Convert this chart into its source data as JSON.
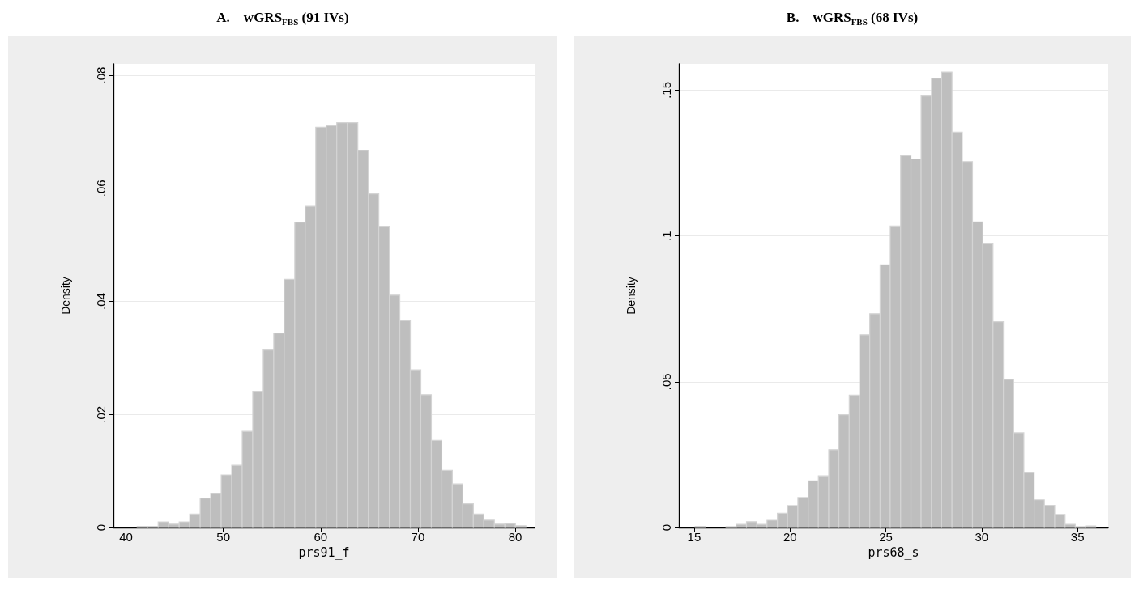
{
  "chart_data": [
    {
      "type": "histogram",
      "title": "A.    wGRS$_{FBS}$ (91 IVs)",
      "xlabel": "prs91_f",
      "ylabel": "Density",
      "color": "#bebebe",
      "bins": [
        41.14,
        42.22,
        43.3,
        44.38,
        45.46,
        46.54,
        47.62,
        48.7,
        49.78,
        50.86,
        51.94,
        53.02,
        54.1,
        55.18,
        56.26,
        57.34,
        58.42,
        59.5,
        60.58,
        61.66,
        62.74,
        63.82,
        64.9,
        65.98,
        67.06,
        68.14,
        69.22,
        70.3,
        71.38,
        72.46,
        73.54,
        74.62,
        75.7,
        76.78,
        77.86,
        78.94,
        80.02,
        81.1
      ],
      "values": [
        0.0002,
        0.0002,
        0.001,
        0.0006,
        0.001,
        0.0024,
        0.0052,
        0.006,
        0.0093,
        0.011,
        0.017,
        0.0241,
        0.0314,
        0.0344,
        0.0439,
        0.054,
        0.0568,
        0.0708,
        0.0711,
        0.0716,
        0.0716,
        0.0667,
        0.059,
        0.0533,
        0.0411,
        0.0366,
        0.0279,
        0.0235,
        0.0154,
        0.0101,
        0.0077,
        0.0042,
        0.0024,
        0.0013,
        0.0006,
        0.0007,
        0.0003
      ],
      "xlim": [
        38.7,
        82
      ],
      "xticks": [
        40,
        50,
        60,
        70,
        80
      ],
      "ylim": [
        0,
        0.082
      ],
      "yticks": [
        0,
        {
          "value": 0.02,
          "label": ".02"
        },
        {
          "value": 0.04,
          "label": ".04"
        },
        {
          "value": 0.06,
          "label": ".06"
        },
        {
          "value": 0.08,
          "label": ".08"
        }
      ],
      "grid": "y"
    },
    {
      "type": "histogram",
      "title": "B.    wGRS$_{FBS}$ (68 IVs)",
      "xlabel": "prs68_s",
      "ylabel": "Density",
      "color": "#bebebe",
      "bins": [
        15.05,
        15.59,
        16.12,
        16.66,
        17.19,
        17.73,
        18.27,
        18.8,
        19.34,
        19.87,
        20.41,
        20.95,
        21.48,
        22.02,
        22.55,
        23.09,
        23.63,
        24.16,
        24.7,
        25.23,
        25.77,
        26.31,
        26.84,
        27.38,
        27.91,
        28.45,
        28.99,
        29.52,
        30.06,
        30.59,
        31.13,
        31.67,
        32.2,
        32.74,
        33.27,
        33.81,
        34.35,
        34.88,
        35.42,
        35.95
      ],
      "values": [
        0.0004,
        0,
        0,
        0.0003,
        0.0011,
        0.002,
        0.0011,
        0.0025,
        0.0049,
        0.0075,
        0.0103,
        0.016,
        0.0177,
        0.0267,
        0.0387,
        0.0454,
        0.0661,
        0.0733,
        0.0901,
        0.1034,
        0.1276,
        0.1264,
        0.148,
        0.1541,
        0.1562,
        0.1356,
        0.1255,
        0.1048,
        0.0975,
        0.0706,
        0.0508,
        0.0325,
        0.0188,
        0.0095,
        0.0076,
        0.0045,
        0.0011,
        0.0003,
        0.0005
      ],
      "xlim": [
        14.2,
        36.6
      ],
      "xticks": [
        15,
        20,
        25,
        30,
        35
      ],
      "ylim": [
        0,
        0.159
      ],
      "yticks": [
        0,
        {
          "value": 0.05,
          "label": ".05"
        },
        {
          "value": 0.1,
          "label": ".1"
        },
        {
          "value": 0.15,
          "label": ".15"
        }
      ],
      "grid": "y"
    }
  ]
}
